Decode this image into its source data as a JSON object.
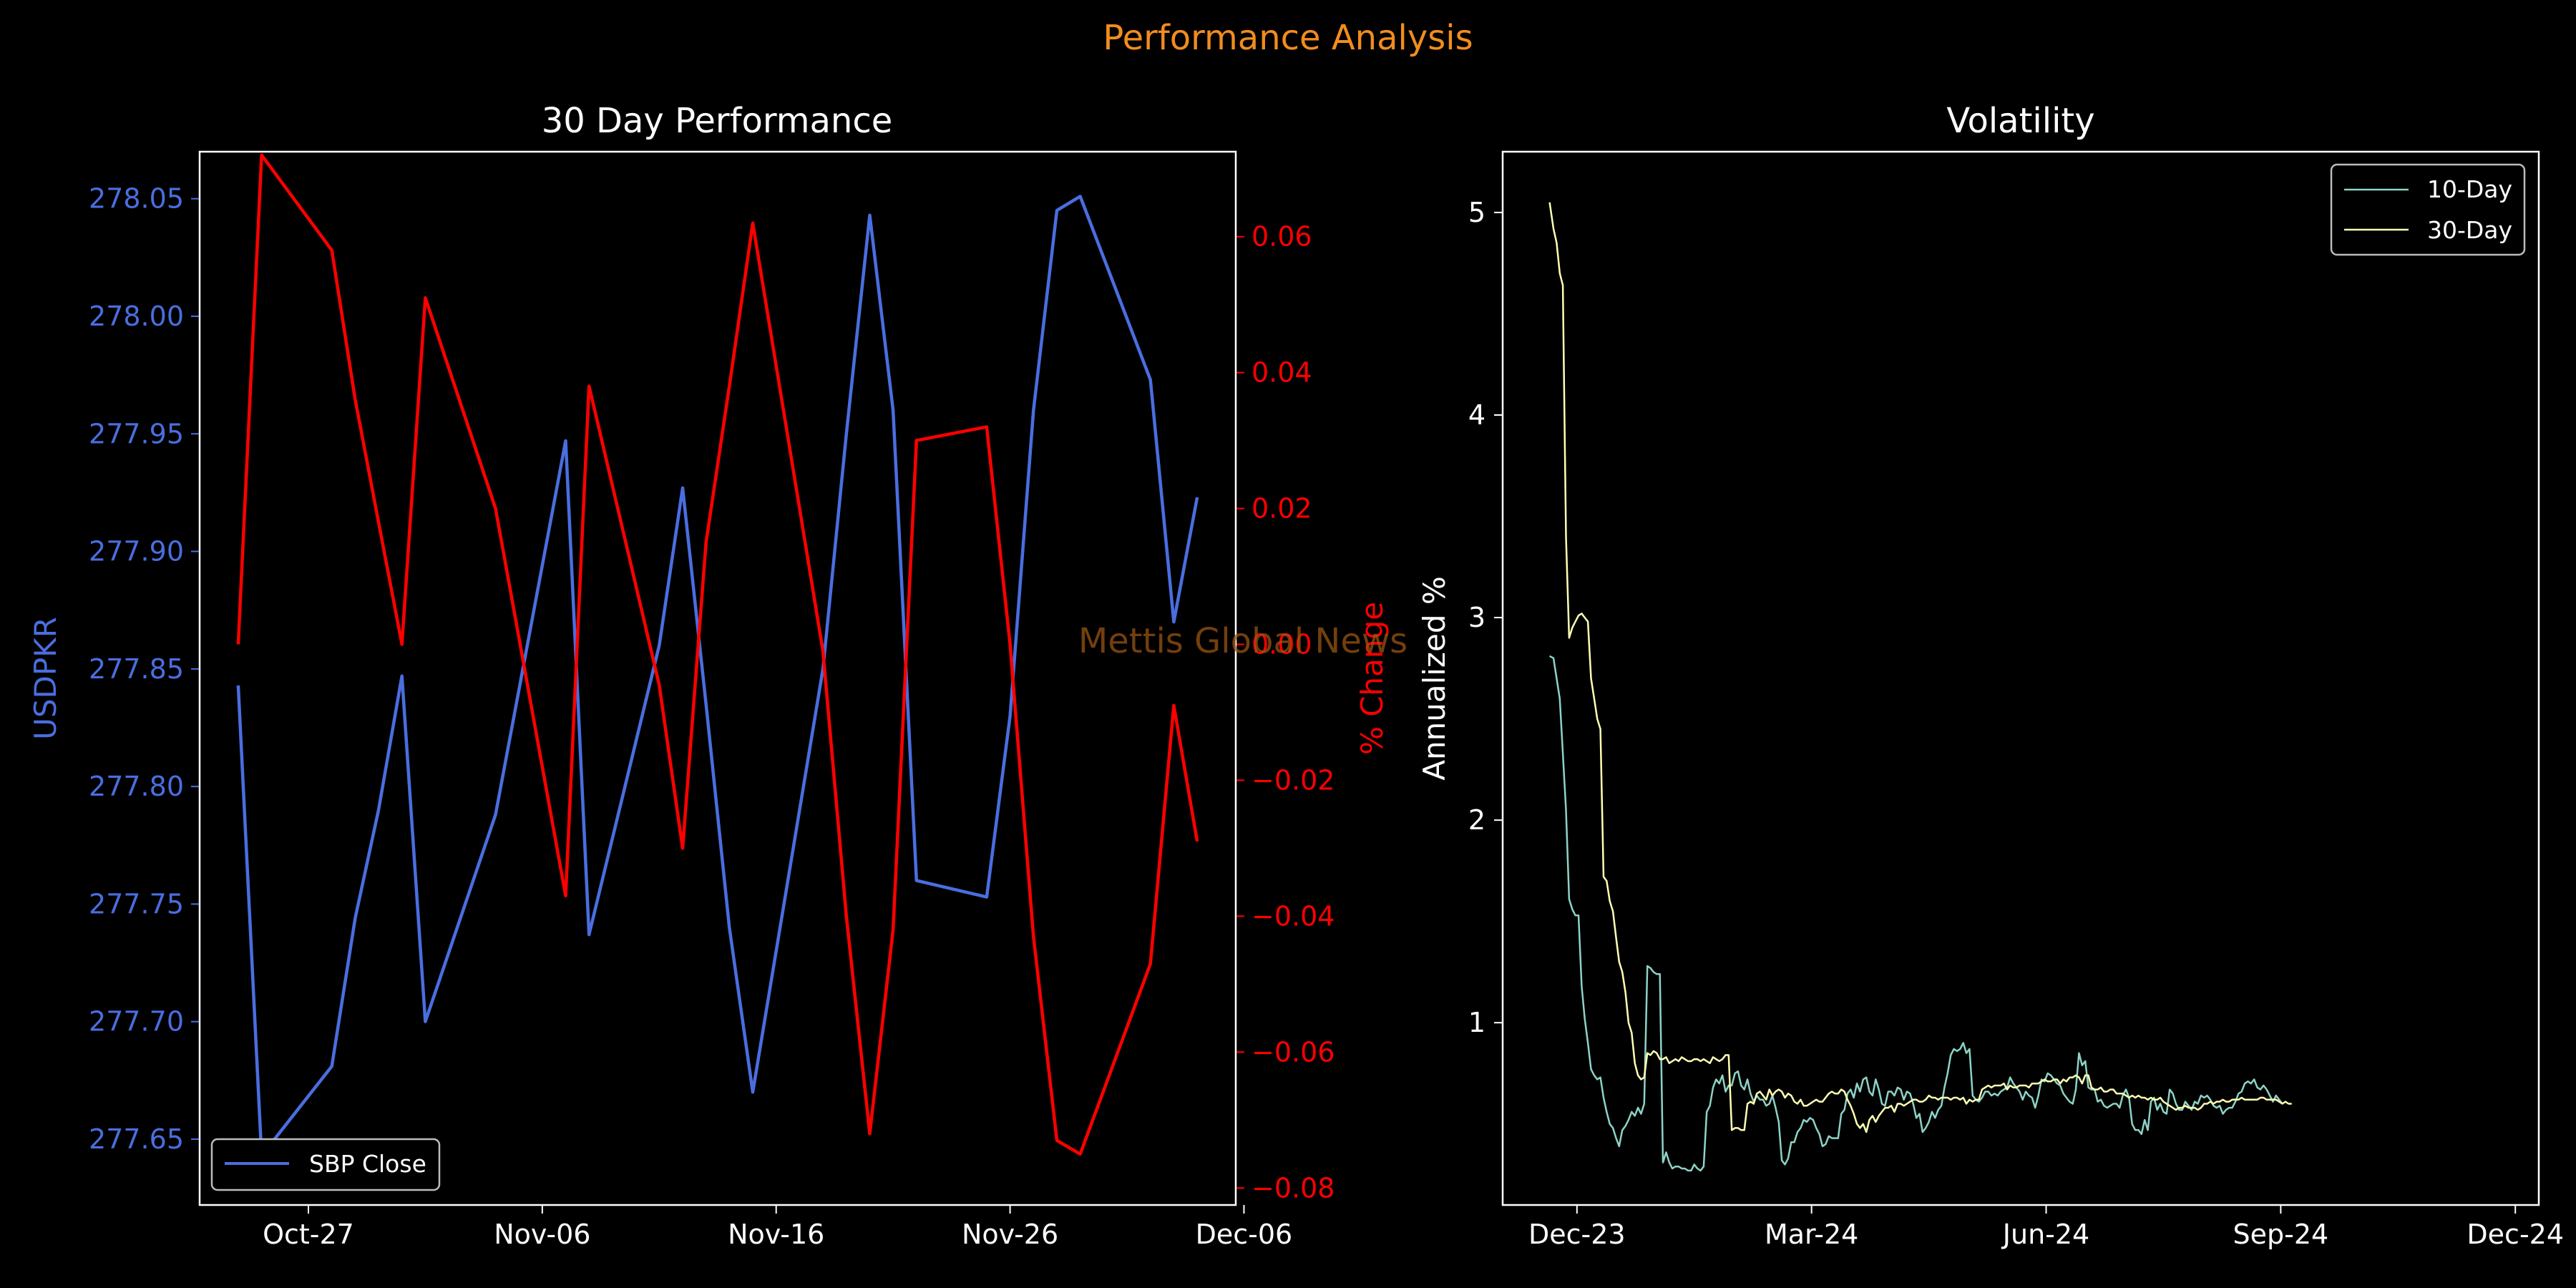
{
  "suptitle": "Performance Analysis",
  "watermark": "Mettis Global News",
  "colors": {
    "background": "#000000",
    "suptitle": "#f28c1e",
    "axis": "#ffffff",
    "close_line": "#4a6ee0",
    "change_line": "#ff0000",
    "vol10": "#8dd3c7",
    "vol30": "#ffffb3",
    "watermark": "#9a5410"
  },
  "chart_data": [
    {
      "type": "line",
      "title": "30 Day Performance",
      "xlabel": "",
      "ylabel": "USDPKR",
      "y2label": "% Change",
      "x_ticks": [
        "Oct-27",
        "Nov-06",
        "Nov-16",
        "Nov-26",
        "Dec-06"
      ],
      "x_tick_days": [
        0,
        10,
        20,
        30,
        40
      ],
      "x_dates": [
        "Oct-24",
        "Oct-25",
        "Oct-28",
        "Oct-29",
        "Oct-30",
        "Oct-31",
        "Nov-01",
        "Nov-04",
        "Nov-07",
        "Nov-08",
        "Nov-11",
        "Nov-12",
        "Nov-13",
        "Nov-14",
        "Nov-15",
        "Nov-18",
        "Nov-19",
        "Nov-20",
        "Nov-21",
        "Nov-22",
        "Nov-25",
        "Nov-26",
        "Nov-27",
        "Nov-28",
        "Nov-29",
        "Dec-02",
        "Dec-03",
        "Dec-04"
      ],
      "x_days": [
        -3,
        -2,
        1,
        2,
        3,
        4,
        5,
        8,
        11,
        12,
        15,
        16,
        17,
        18,
        19,
        22,
        23,
        24,
        25,
        26,
        29,
        30,
        31,
        32,
        33,
        36,
        37,
        38
      ],
      "ylim": [
        277.622,
        278.07
      ],
      "y_ticks": [
        277.65,
        277.7,
        277.75,
        277.8,
        277.85,
        277.9,
        277.95,
        278.0,
        278.05
      ],
      "y2lim": [
        -0.0825,
        0.0725
      ],
      "y2_ticks": [
        0.06,
        0.04,
        0.02,
        0.0,
        -0.02,
        -0.04,
        -0.06,
        -0.08
      ],
      "legend": "lower-left",
      "series": [
        {
          "name": "SBP Close",
          "axis": "left",
          "values": [
            277.843,
            277.643,
            277.681,
            277.744,
            277.79,
            277.847,
            277.7,
            277.788,
            277.947,
            277.737,
            277.86,
            277.927,
            277.835,
            277.74,
            277.67,
            277.85,
            277.95,
            278.043,
            277.96,
            277.76,
            277.753,
            277.83,
            277.96,
            278.045,
            278.051,
            277.973,
            277.87,
            277.923
          ]
        },
        {
          "name": "",
          "axis": "right",
          "values": [
            0.0,
            0.072,
            0.058,
            0.036,
            0.018,
            0.0,
            0.051,
            0.02,
            -0.037,
            0.038,
            -0.006,
            -0.03,
            0.015,
            0.038,
            0.062,
            -0.001,
            -0.04,
            -0.072,
            -0.042,
            0.03,
            0.032,
            0.0,
            -0.043,
            -0.073,
            -0.075,
            -0.047,
            -0.009,
            -0.029
          ]
        }
      ]
    },
    {
      "type": "line",
      "title": "Volatility",
      "xlabel": "",
      "ylabel": "Annualized %",
      "x_ticks": [
        "Dec-23",
        "Mar-24",
        "Jun-24",
        "Sep-24",
        "Dec-24"
      ],
      "x_tick_months": [
        0,
        3,
        6,
        9,
        12
      ],
      "x_months": [
        -0.35,
        -0.3,
        -0.26,
        -0.22,
        -0.18,
        -0.14,
        -0.1,
        -0.06,
        -0.02,
        0.02,
        0.06,
        0.1,
        0.14,
        0.18,
        0.22,
        0.26,
        0.3,
        0.34,
        0.38,
        0.42,
        0.46,
        0.5,
        0.54,
        0.58,
        0.62,
        0.66,
        0.7,
        0.74,
        0.78,
        0.82,
        0.86,
        0.9,
        0.94,
        0.98,
        1.02,
        1.06,
        1.1,
        1.14,
        1.18,
        1.22,
        1.26,
        1.3,
        1.34,
        1.38,
        1.42,
        1.46,
        1.5,
        1.54,
        1.58,
        1.62,
        1.66,
        1.7,
        1.74,
        1.78,
        1.82,
        1.86,
        1.9,
        1.94,
        1.98,
        2.02,
        2.06,
        2.1,
        2.14,
        2.18,
        2.22,
        2.26,
        2.3,
        2.34,
        2.38,
        2.42,
        2.46,
        2.5,
        2.54,
        2.58,
        2.62,
        2.66,
        2.7,
        2.74,
        2.78,
        2.82,
        2.86,
        2.9,
        2.94,
        2.98,
        3.02,
        3.06,
        3.1,
        3.14,
        3.18,
        3.22,
        3.26,
        3.3,
        3.34,
        3.38,
        3.42,
        3.46,
        3.5,
        3.54,
        3.58,
        3.62,
        3.66,
        3.7,
        3.74,
        3.78,
        3.82,
        3.86,
        3.9,
        3.94,
        3.98,
        4.02,
        4.06,
        4.1,
        4.14,
        4.18,
        4.22,
        4.26,
        4.3,
        4.34,
        4.38,
        4.42,
        4.46,
        4.5,
        4.54,
        4.58,
        4.62,
        4.66,
        4.7,
        4.74,
        4.78,
        4.82,
        4.86,
        4.9,
        4.94,
        4.98,
        5.02,
        5.06,
        5.1,
        5.14,
        5.18,
        5.22,
        5.26,
        5.3,
        5.34,
        5.38,
        5.42,
        5.46,
        5.5,
        5.54,
        5.58,
        5.62,
        5.66,
        5.7,
        5.74,
        5.78,
        5.82,
        5.86,
        5.9,
        5.94,
        5.98,
        6.02,
        6.06,
        6.1,
        6.14,
        6.18,
        6.22,
        6.26,
        6.3,
        6.34,
        6.38,
        6.42,
        6.46,
        6.5,
        6.54,
        6.58,
        6.62,
        6.66,
        6.7,
        6.74,
        6.78,
        6.82,
        6.86,
        6.9,
        6.94,
        6.98,
        7.02,
        7.06,
        7.1,
        7.14,
        7.18,
        7.22,
        7.26,
        7.3,
        7.34,
        7.38,
        7.42,
        7.46,
        7.5,
        7.54,
        7.58,
        7.62,
        7.66,
        7.7,
        7.74,
        7.78,
        7.82,
        7.86,
        7.9,
        7.94,
        7.98,
        8.02,
        8.06,
        8.1,
        8.14,
        8.18,
        8.22,
        8.26,
        8.3,
        8.34,
        8.38,
        8.42,
        8.46,
        8.5,
        8.54,
        8.58,
        8.62,
        8.66,
        8.7,
        8.74,
        8.78,
        8.82,
        8.86,
        8.9,
        8.94,
        8.98,
        9.02,
        9.06,
        9.1,
        9.14,
        9.18,
        9.22,
        9.26,
        9.3,
        9.34,
        9.38,
        9.42,
        9.46,
        9.5,
        9.54,
        9.58,
        9.62,
        9.66,
        9.7,
        9.74,
        9.78,
        9.82,
        9.86,
        9.9,
        9.94,
        9.98,
        10.02,
        10.06,
        10.1,
        10.14,
        10.18,
        10.22,
        10.26,
        10.3,
        10.34,
        10.38,
        10.42,
        10.46,
        10.5,
        10.54,
        10.58,
        10.62,
        10.66,
        10.7,
        10.74,
        10.78,
        10.82,
        10.86,
        10.9,
        10.94,
        10.98,
        11.02,
        11.06,
        11.1,
        11.14,
        11.18,
        11.22,
        11.26,
        11.3,
        11.34,
        11.38,
        11.42,
        11.46,
        11.5,
        11.54,
        11.58,
        11.62,
        11.66,
        11.7,
        11.74,
        11.78,
        11.82,
        11.86,
        11.9,
        11.94,
        11.98,
        12.02,
        12.06,
        12.1
      ],
      "ylim": [
        0.1,
        5.3
      ],
      "y_ticks": [
        1,
        2,
        3,
        4,
        5
      ],
      "legend": "top-right",
      "series": [
        {
          "name": "10-Day",
          "values": [
            2.81,
            2.8,
            2.7,
            2.6,
            2.33,
            2.05,
            1.61,
            1.56,
            1.53,
            1.53,
            1.18,
            1.02,
            0.9,
            0.77,
            0.74,
            0.72,
            0.73,
            0.63,
            0.56,
            0.5,
            0.48,
            0.43,
            0.39,
            0.47,
            0.49,
            0.52,
            0.56,
            0.54,
            0.58,
            0.55,
            0.6,
            1.28,
            1.27,
            1.25,
            1.24,
            1.24,
            0.31,
            0.36,
            0.31,
            0.28,
            0.29,
            0.29,
            0.28,
            0.28,
            0.27,
            0.27,
            0.3,
            0.28,
            0.27,
            0.29,
            0.56,
            0.59,
            0.68,
            0.72,
            0.7,
            0.74,
            0.66,
            0.69,
            0.69,
            0.75,
            0.76,
            0.69,
            0.67,
            0.72,
            0.65,
            0.61,
            0.64,
            0.62,
            0.62,
            0.59,
            0.6,
            0.64,
            0.58,
            0.51,
            0.32,
            0.3,
            0.33,
            0.41,
            0.41,
            0.46,
            0.48,
            0.52,
            0.51,
            0.53,
            0.52,
            0.48,
            0.45,
            0.39,
            0.4,
            0.44,
            0.43,
            0.43,
            0.43,
            0.55,
            0.57,
            0.65,
            0.67,
            0.63,
            0.7,
            0.66,
            0.72,
            0.73,
            0.66,
            0.64,
            0.72,
            0.67,
            0.6,
            0.59,
            0.66,
            0.66,
            0.64,
            0.68,
            0.67,
            0.62,
            0.66,
            0.65,
            0.6,
            0.53,
            0.55,
            0.46,
            0.48,
            0.51,
            0.56,
            0.53,
            0.57,
            0.59,
            0.68,
            0.75,
            0.84,
            0.87,
            0.86,
            0.87,
            0.9,
            0.85,
            0.87,
            0.64,
            0.62,
            0.61,
            0.63,
            0.66,
            0.66,
            0.64,
            0.65,
            0.64,
            0.66,
            0.67,
            0.68,
            0.73,
            0.7,
            0.68,
            0.66,
            0.62,
            0.66,
            0.64,
            0.63,
            0.58,
            0.64,
            0.72,
            0.71,
            0.75,
            0.74,
            0.72,
            0.7,
            0.69,
            0.65,
            0.63,
            0.61,
            0.6,
            0.67,
            0.85,
            0.79,
            0.81,
            0.68,
            0.67,
            0.67,
            0.61,
            0.62,
            0.59,
            0.58,
            0.59,
            0.6,
            0.6,
            0.58,
            0.64,
            0.67,
            0.63,
            0.5,
            0.47,
            0.47,
            0.45,
            0.52,
            0.47,
            0.61,
            0.63,
            0.57,
            0.6,
            0.56,
            0.55,
            0.67,
            0.65,
            0.6,
            0.57,
            0.57,
            0.61,
            0.59,
            0.57,
            0.61,
            0.6,
            0.64,
            0.63,
            0.64,
            0.62,
            0.59,
            0.58,
            0.59,
            0.55,
            0.57,
            0.58,
            0.58,
            0.61,
            0.65,
            0.66,
            0.7,
            0.71,
            0.7,
            0.72,
            0.68,
            0.67,
            0.69,
            0.67,
            0.64,
            0.61,
            0.64,
            0.62,
            0.6
          ],
          "note": ""
        },
        {
          "name": "30-Day",
          "values": [
            5.05,
            4.92,
            4.85,
            4.7,
            4.64,
            3.4,
            2.9,
            2.95,
            2.98,
            3.01,
            3.02,
            3.0,
            2.98,
            2.7,
            2.6,
            2.5,
            2.45,
            1.72,
            1.7,
            1.6,
            1.55,
            1.42,
            1.3,
            1.25,
            1.15,
            1.0,
            0.95,
            0.8,
            0.74,
            0.72,
            0.73,
            0.85,
            0.84,
            0.86,
            0.85,
            0.82,
            0.82,
            0.83,
            0.8,
            0.81,
            0.82,
            0.81,
            0.83,
            0.82,
            0.81,
            0.81,
            0.82,
            0.82,
            0.81,
            0.82,
            0.81,
            0.8,
            0.83,
            0.82,
            0.81,
            0.82,
            0.84,
            0.84,
            0.47,
            0.48,
            0.48,
            0.47,
            0.47,
            0.6,
            0.61,
            0.6,
            0.65,
            0.66,
            0.64,
            0.62,
            0.67,
            0.64,
            0.66,
            0.67,
            0.66,
            0.63,
            0.65,
            0.64,
            0.61,
            0.6,
            0.62,
            0.59,
            0.59,
            0.6,
            0.61,
            0.62,
            0.61,
            0.61,
            0.63,
            0.65,
            0.66,
            0.65,
            0.65,
            0.67,
            0.66,
            0.62,
            0.59,
            0.55,
            0.5,
            0.48,
            0.5,
            0.46,
            0.52,
            0.54,
            0.51,
            0.54,
            0.56,
            0.58,
            0.58,
            0.59,
            0.56,
            0.6,
            0.6,
            0.59,
            0.6,
            0.61,
            0.62,
            0.62,
            0.61,
            0.61,
            0.62,
            0.64,
            0.63,
            0.63,
            0.62,
            0.63,
            0.63,
            0.63,
            0.62,
            0.63,
            0.63,
            0.62,
            0.63,
            0.6,
            0.62,
            0.61,
            0.62,
            0.62,
            0.67,
            0.68,
            0.69,
            0.68,
            0.69,
            0.69,
            0.69,
            0.7,
            0.67,
            0.69,
            0.68,
            0.68,
            0.69,
            0.69,
            0.69,
            0.68,
            0.7,
            0.7,
            0.7,
            0.71,
            0.72,
            0.71,
            0.71,
            0.72,
            0.72,
            0.7,
            0.72,
            0.71,
            0.73,
            0.73,
            0.74,
            0.73,
            0.7,
            0.74,
            0.74,
            0.68,
            0.67,
            0.67,
            0.68,
            0.66,
            0.66,
            0.67,
            0.67,
            0.65,
            0.65,
            0.65,
            0.64,
            0.63,
            0.64,
            0.63,
            0.64,
            0.63,
            0.63,
            0.62,
            0.63,
            0.62,
            0.62,
            0.63,
            0.61,
            0.6,
            0.59,
            0.58,
            0.57,
            0.58,
            0.58,
            0.59,
            0.58,
            0.58,
            0.58,
            0.57,
            0.58,
            0.6,
            0.6,
            0.61,
            0.6,
            0.61,
            0.61,
            0.62,
            0.61,
            0.61,
            0.62,
            0.62,
            0.62,
            0.63,
            0.62,
            0.62,
            0.62,
            0.62,
            0.62,
            0.63,
            0.63,
            0.62,
            0.62,
            0.62,
            0.62,
            0.61,
            0.6,
            0.61,
            0.6,
            0.6
          ],
          "note": ""
        }
      ]
    }
  ]
}
